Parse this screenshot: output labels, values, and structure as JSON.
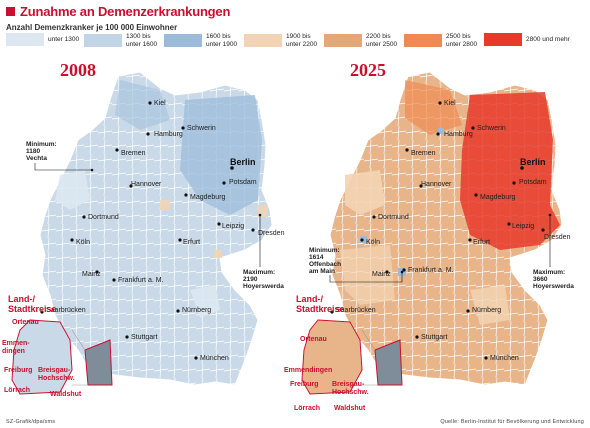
{
  "title": "Zunahme an Demenzerkrankungen",
  "subtitle": "Anzahl Demenzkranker je 100 000 Einwohner",
  "legend": [
    {
      "label": "unter 1300",
      "color": "#dde7f1"
    },
    {
      "label": "1300 bis\nunter 1600",
      "color": "#c2d5e6"
    },
    {
      "label": "1600 bis\nunter 1900",
      "color": "#9bbbd9"
    },
    {
      "label": "1900 bis\nunter 2200",
      "color": "#f2d4b4"
    },
    {
      "label": "2200 bis\nunter 2500",
      "color": "#e3a878"
    },
    {
      "label": "2500 bis\nunter 2800",
      "color": "#ef8a52"
    },
    {
      "label": "2800 und mehr",
      "color": "#e83a2a"
    }
  ],
  "maps": [
    {
      "year": "2008",
      "minimum": {
        "label": "Minimum:",
        "value": "1180",
        "place": "Vechta"
      },
      "maximum": {
        "label": "Maximum:",
        "value": "2190",
        "place": "Hoyerswerda"
      }
    },
    {
      "year": "2025",
      "minimum": {
        "label": "Minimum:",
        "value": "1614",
        "place": "Offenbach",
        "place2": "am Main"
      },
      "maximum": {
        "label": "Maximum:",
        "value": "3660",
        "place": "Hoyerswerda"
      }
    }
  ],
  "cities": {
    "kiel": "Kiel",
    "hamburg": "Hamburg",
    "schwerin": "Schwerin",
    "bremen": "Bremen",
    "berlin": "Berlin",
    "potsdam": "Potsdam",
    "hannover": "Hannover",
    "magdeburg": "Magdeburg",
    "dortmund": "Dortmund",
    "leipzig": "Leipzig",
    "dresden": "Dresden",
    "koeln": "Köln",
    "erfurt": "Erfurt",
    "mainz": "Mainz",
    "frankfurt": "Frankfurt a. M.",
    "saarbruecken": "Saarbrücken",
    "nuernberg": "Nürnberg",
    "stuttgart": "Stuttgart",
    "muenchen": "München"
  },
  "inset": {
    "title": "Land-/\nStadtkreise",
    "ortenau": "Ortenau",
    "emmendingen": "Emmen-\ndingen",
    "freiburg": "Freiburg",
    "loerrach": "Lörrach",
    "breisgau": "Breisgau-\nHochschw.",
    "waldshut": "Waldshut"
  },
  "inset2": {
    "emmendingen": "Emmendingen"
  },
  "footer": {
    "left": "SZ-Grafik/dpa/sms",
    "right": "Quelle: Berlin-Institut für Bevölkerung und Entwicklung"
  }
}
